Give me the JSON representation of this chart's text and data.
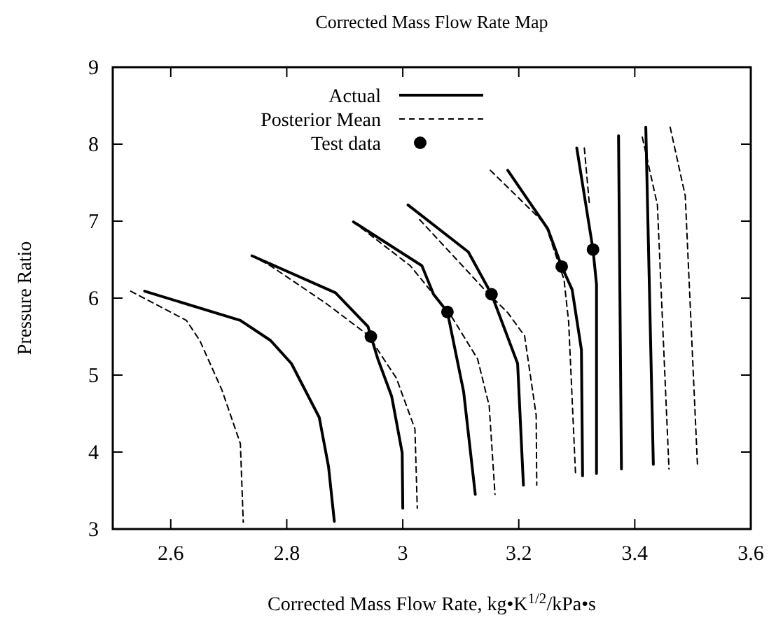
{
  "chart_data": {
    "type": "line",
    "title": "Corrected Mass Flow Rate Map",
    "xlabel": "Corrected Mass Flow Rate, kg•K$^{1/2}$/kPa•s",
    "ylabel": "Pressure Ratio",
    "xlim": [
      2.5,
      3.6
    ],
    "ylim": [
      3,
      9
    ],
    "xticks": [
      2.6,
      2.8,
      3,
      3.2,
      3.4,
      3.6
    ],
    "yticks": [
      3,
      4,
      5,
      6,
      7,
      8,
      9
    ],
    "grid": false,
    "legend": "top",
    "series": [
      {
        "name": "Actual",
        "color": "#000000",
        "line_style": "solid",
        "marker": "none",
        "x": [
          2.555,
          2.72,
          2.772,
          2.808,
          2.856,
          2.872,
          2.882,
          null,
          2.74,
          2.884,
          2.94,
          2.957,
          2.981,
          2.999,
          3.0,
          null,
          2.915,
          3.033,
          3.053,
          3.077,
          3.105,
          3.125,
          null,
          3.009,
          3.113,
          3.153,
          3.198,
          3.208,
          null,
          3.181,
          3.25,
          3.274,
          3.292,
          3.308,
          3.31,
          null,
          3.3,
          3.328,
          3.334,
          3.334,
          null,
          3.372,
          3.377,
          null,
          3.419,
          3.432
        ],
        "values": [
          6.09,
          5.71,
          5.45,
          5.15,
          4.45,
          3.81,
          3.1,
          null,
          6.55,
          6.07,
          5.63,
          5.21,
          4.72,
          3.99,
          3.27,
          null,
          6.99,
          6.42,
          6.05,
          5.82,
          4.78,
          3.45,
          null,
          7.21,
          6.6,
          6.05,
          5.15,
          3.57,
          null,
          7.66,
          6.9,
          6.41,
          6.11,
          5.33,
          3.69,
          null,
          7.95,
          6.63,
          6.18,
          3.72,
          null,
          8.11,
          3.78,
          null,
          8.22,
          3.84
        ]
      },
      {
        "name": "Posterior Mean",
        "color": "#000000",
        "line_style": "dashed",
        "marker": "none",
        "x": [
          2.531,
          2.627,
          2.65,
          2.688,
          2.72,
          2.725,
          null,
          2.74,
          2.772,
          2.868,
          2.94,
          2.989,
          3.021,
          3.025,
          null,
          2.915,
          3.013,
          3.053,
          3.085,
          3.129,
          3.149,
          3.159,
          null,
          3.029,
          3.141,
          3.181,
          3.21,
          3.23,
          3.231,
          null,
          3.151,
          3.246,
          3.278,
          3.286,
          3.298,
          null,
          3.313,
          3.322,
          null,
          3.413,
          3.439,
          3.459,
          null,
          3.461,
          3.487,
          3.508
        ],
        "values": [
          6.09,
          5.71,
          5.45,
          4.81,
          4.11,
          3.09,
          null,
          6.55,
          6.42,
          5.93,
          5.52,
          4.96,
          4.3,
          3.27,
          null,
          6.99,
          6.42,
          6.05,
          5.75,
          5.21,
          4.6,
          3.45,
          null,
          7.02,
          6.11,
          5.81,
          5.51,
          4.48,
          3.57,
          null,
          7.66,
          6.96,
          6.24,
          5.69,
          3.69,
          null,
          7.95,
          7.2,
          null,
          8.09,
          7.21,
          3.78,
          null,
          8.22,
          7.33,
          3.84
        ]
      },
      {
        "name": "Test data",
        "type": "scatter",
        "color": "#000000",
        "marker": "circle",
        "x": [
          2.945,
          3.077,
          3.153,
          3.274,
          3.328
        ],
        "values": [
          5.5,
          5.82,
          6.05,
          6.41,
          6.63
        ]
      }
    ]
  }
}
